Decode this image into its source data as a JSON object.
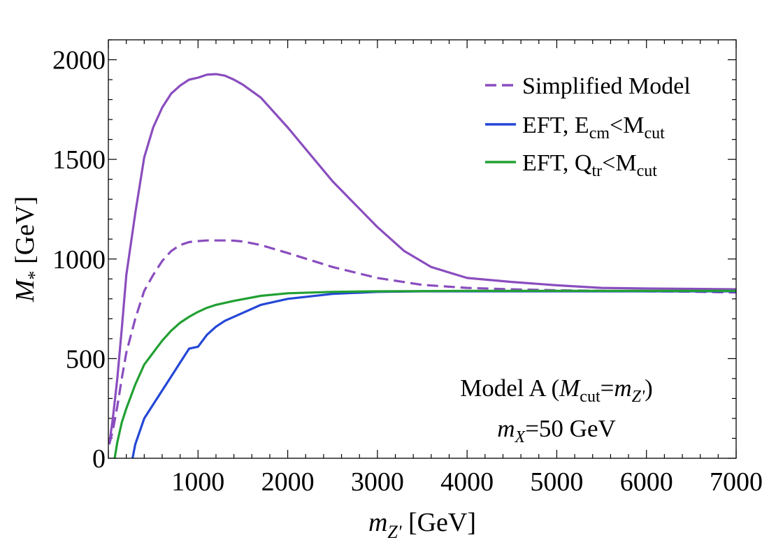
{
  "chart_data": {
    "type": "line",
    "xlabel": {
      "var": "m",
      "sub": "Z'",
      "unit": " [GeV]"
    },
    "ylabel": {
      "var": "M",
      "sub": "*",
      "unit": " [GeV]"
    },
    "xlim": [
      0,
      7000
    ],
    "ylim": [
      0,
      2100
    ],
    "xticks": [
      1000,
      2000,
      3000,
      4000,
      5000,
      6000,
      7000
    ],
    "yticks": [
      0,
      500,
      1000,
      1500,
      2000
    ],
    "grid": false,
    "legend_position": "top-right",
    "series": [
      {
        "name": "Simplified Model",
        "legend_label": {
          "main": "Simplified Model"
        },
        "color": "#8a4dbf",
        "style": "solid",
        "in_legend": true,
        "x": [
          10,
          50,
          100,
          150,
          200,
          300,
          400,
          500,
          600,
          700,
          800,
          900,
          1000,
          1100,
          1200,
          1300,
          1400,
          1500,
          1700,
          2000,
          2500,
          3000,
          3300,
          3600,
          4000,
          4500,
          5000,
          5500,
          6000,
          6500,
          7000
        ],
        "values": [
          70,
          200,
          400,
          650,
          920,
          1230,
          1510,
          1660,
          1760,
          1830,
          1870,
          1900,
          1910,
          1925,
          1928,
          1920,
          1900,
          1875,
          1810,
          1660,
          1390,
          1160,
          1040,
          960,
          905,
          885,
          868,
          855,
          852,
          850,
          848
        ]
      },
      {
        "name": "Simplified Model (dashed)",
        "color": "#8a4dbf",
        "style": "dashed",
        "in_legend": false,
        "x": [
          10,
          50,
          100,
          150,
          200,
          300,
          400,
          500,
          600,
          700,
          800,
          900,
          1000,
          1100,
          1200,
          1300,
          1400,
          1500,
          1700,
          2000,
          2500,
          3000,
          3500,
          4000,
          4500,
          5000,
          5500,
          6000,
          6500,
          7000
        ],
        "values": [
          70,
          140,
          260,
          400,
          530,
          700,
          840,
          920,
          990,
          1040,
          1070,
          1085,
          1090,
          1093,
          1093,
          1093,
          1092,
          1088,
          1070,
          1030,
          960,
          905,
          870,
          855,
          848,
          843,
          840,
          838,
          836,
          832
        ]
      },
      {
        "name": "EFT, Ecm<Mcut",
        "legend_label": {
          "main": "EFT, E",
          "sub": "cm",
          "mid": "<M",
          "sub2": "cut"
        },
        "color": "#2447d6",
        "style": "solid",
        "in_legend": true,
        "x": [
          270,
          300,
          400,
          500,
          600,
          700,
          800,
          900,
          1000,
          1100,
          1200,
          1300,
          1500,
          1700,
          2000,
          2500,
          3000,
          3500,
          4000,
          5000,
          6000,
          7000
        ],
        "values": [
          0,
          70,
          200,
          270,
          340,
          410,
          480,
          550,
          560,
          620,
          660,
          690,
          730,
          770,
          800,
          825,
          835,
          838,
          838,
          838,
          838,
          838
        ]
      },
      {
        "name": "EFT, Qtr<Mcut",
        "legend_label": {
          "main": "EFT, Q",
          "sub": "tr",
          "mid": "<M",
          "sub2": "cut"
        },
        "color": "#22a033",
        "style": "solid",
        "in_legend": true,
        "x": [
          70,
          100,
          150,
          200,
          300,
          400,
          500,
          600,
          700,
          800,
          900,
          1000,
          1100,
          1200,
          1400,
          1700,
          2000,
          2500,
          3000,
          4000,
          5000,
          6000,
          7000
        ],
        "values": [
          0,
          80,
          180,
          250,
          370,
          470,
          530,
          590,
          640,
          680,
          710,
          735,
          755,
          770,
          790,
          815,
          828,
          835,
          838,
          840,
          840,
          840,
          840
        ]
      }
    ],
    "annotations": [
      {
        "line1": {
          "a": "Model A (",
          "M": "M",
          "sub": "cut",
          "eq": "=",
          "m": "m",
          "sub2": "Z'",
          "b": ")"
        }
      },
      {
        "line2": {
          "m": "m",
          "sub": "X",
          "rest": "=50 GeV"
        }
      }
    ]
  }
}
